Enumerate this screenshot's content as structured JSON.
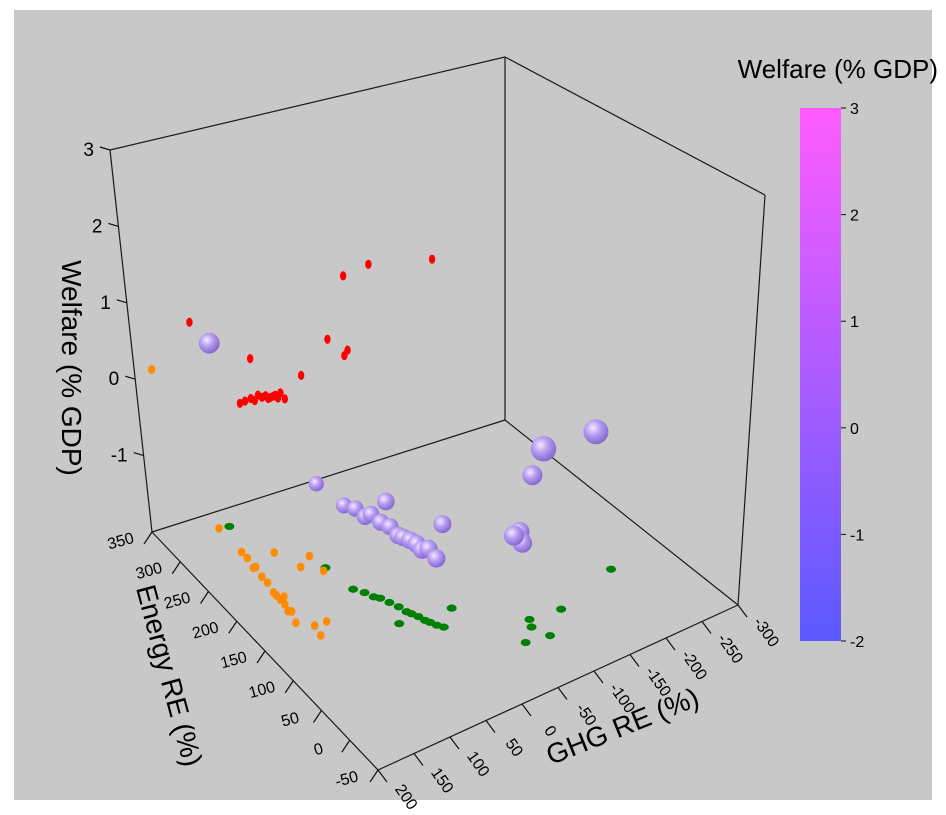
{
  "chart_data": {
    "type": "scatter3d",
    "title": "",
    "xlabel": "GHG RE (%)",
    "ylabel": "Energy RE (%)",
    "zlabel": "Welfare (% GDP)",
    "xlim": [
      -300,
      200
    ],
    "ylim": [
      -50,
      350
    ],
    "zlim": [
      -2,
      3
    ],
    "x_ticks": [
      -300,
      -250,
      -200,
      -150,
      -100,
      -50,
      0,
      50,
      100,
      150,
      200
    ],
    "y_ticks": [
      -50,
      0,
      50,
      100,
      150,
      200,
      250,
      300,
      350
    ],
    "z_ticks": [
      -1,
      0,
      1,
      2,
      3
    ],
    "x_tick_labels": [
      "-300",
      "-250",
      "-200",
      "-150",
      "-100",
      "-50",
      "0",
      "50",
      "100",
      "150",
      "200"
    ],
    "y_tick_labels": [
      "-50",
      "0",
      "50",
      "100",
      "150",
      "200",
      "250",
      "300",
      "350"
    ],
    "z_tick_labels": [
      "-1",
      "0",
      "1",
      "2",
      "3"
    ],
    "colorbar": {
      "title": "Welfare (% GDP)",
      "range": [
        -2,
        3
      ],
      "ticks": [
        -2,
        -1,
        0,
        1,
        2,
        3
      ],
      "tick_labels": [
        "-2",
        "-1",
        "0",
        "1",
        "2",
        "3"
      ],
      "color_low": "#5a5aff",
      "color_high": "#ff5cff"
    },
    "colors": {
      "background": "#c8c8c8",
      "projection_xz": "#ff0000",
      "projection_yz": "#ff8c00",
      "projection_xy": "#008000"
    },
    "grid": false,
    "points": [
      {
        "x": 120,
        "y": 315,
        "z": 0.4
      },
      {
        "x": -210,
        "y": 60,
        "z": -0.2
      },
      {
        "x": 45,
        "y": 110,
        "z": -0.4
      },
      {
        "x": -90,
        "y": 15,
        "z": 0.1
      },
      {
        "x": -125,
        "y": 40,
        "z": 0.1
      },
      {
        "x": -60,
        "y": 20,
        "z": -0.6
      },
      {
        "x": 65,
        "y": 215,
        "z": -0.9
      },
      {
        "x": 58,
        "y": 175,
        "z": -0.9
      },
      {
        "x": 50,
        "y": 165,
        "z": -0.9
      },
      {
        "x": 45,
        "y": 155,
        "z": -0.95
      },
      {
        "x": 40,
        "y": 150,
        "z": -0.9
      },
      {
        "x": 35,
        "y": 140,
        "z": -0.95
      },
      {
        "x": 30,
        "y": 130,
        "z": -0.95
      },
      {
        "x": 27,
        "y": 120,
        "z": -1.0
      },
      {
        "x": 24,
        "y": 115,
        "z": -1.0
      },
      {
        "x": 20,
        "y": 108,
        "z": -1.0
      },
      {
        "x": 17,
        "y": 100,
        "z": -1.0
      },
      {
        "x": 14,
        "y": 95,
        "z": -1.05
      },
      {
        "x": 10,
        "y": 88,
        "z": -1.0
      },
      {
        "x": 5,
        "y": 82,
        "z": -1.1
      },
      {
        "x": -20,
        "y": 100,
        "z": -0.9
      },
      {
        "x": -80,
        "y": 35,
        "z": -0.9
      },
      {
        "x": -85,
        "y": 45,
        "z": -0.85
      }
    ]
  }
}
